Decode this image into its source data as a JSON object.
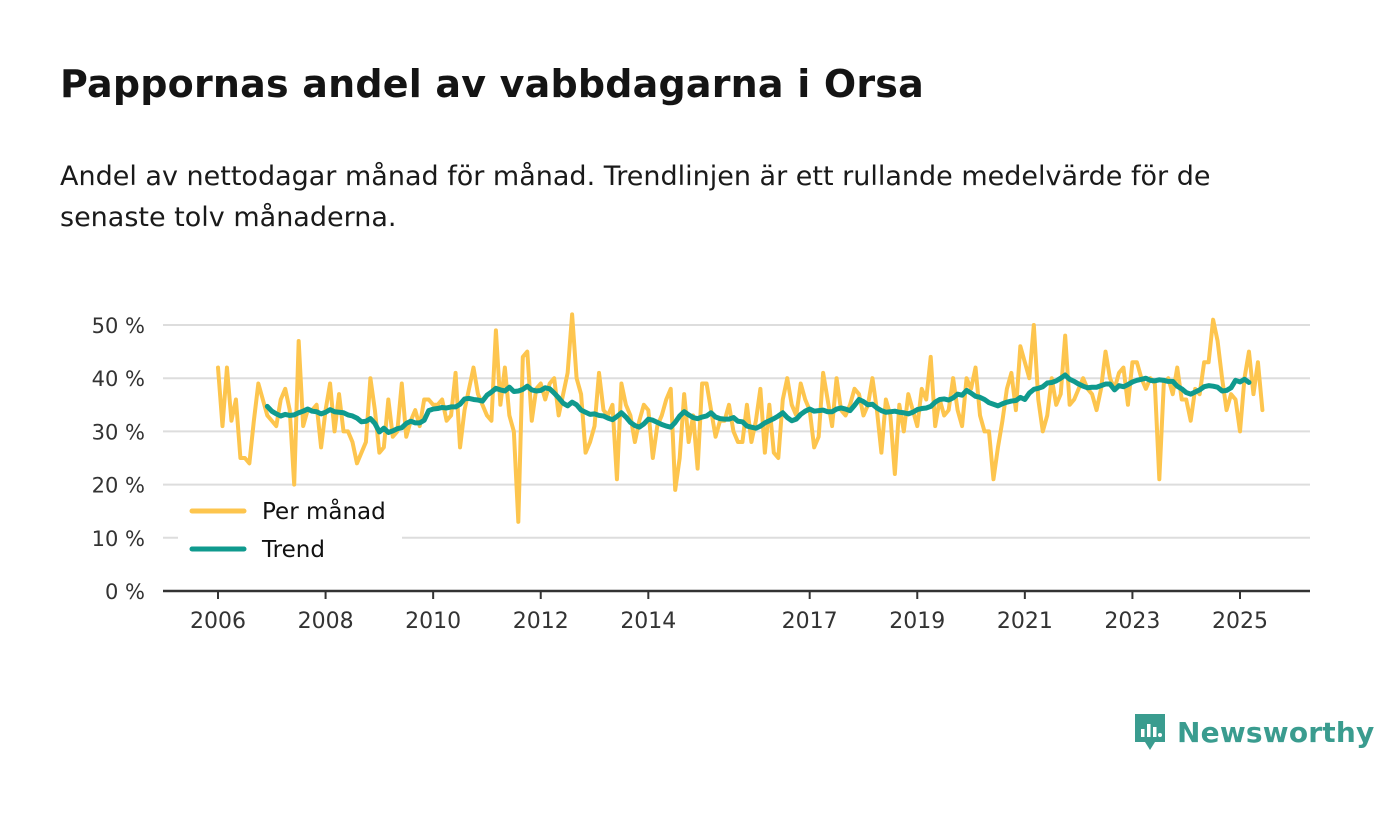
{
  "title": "Pappornas andel av vabbdagarna i Orsa",
  "subtitle": "Andel av nettodagar månad för månad. Trendlinjen är ett rullande medelvärde för de senaste tolv månaderna.",
  "brand": {
    "name": "Newsworthy",
    "icon": "newsworthy-logo-icon"
  },
  "colors": {
    "per_month": "#fdc54e",
    "trend": "#0f9a8e",
    "axis": "#333333",
    "grid": "#dddddd",
    "brand": "#3a9c8f"
  },
  "chart_data": {
    "type": "line",
    "title": "Pappornas andel av vabbdagarna i Orsa",
    "xlabel": "",
    "ylabel": "",
    "xlim": [
      2005.6,
      2026.3
    ],
    "ylim": [
      0,
      50
    ],
    "y_ticks": [
      0,
      10,
      20,
      30,
      40,
      50
    ],
    "y_tick_labels": [
      "0 %",
      "10 %",
      "20 %",
      "30 %",
      "40 %",
      "50 %"
    ],
    "x_ticks": [
      2006,
      2008,
      2010,
      2012,
      2014,
      2017,
      2019,
      2021,
      2023,
      2025
    ],
    "x_tick_labels": [
      "2006",
      "2008",
      "2010",
      "2012",
      "2014",
      "2017",
      "2019",
      "2021",
      "2023",
      "2025"
    ],
    "grid": true,
    "legend": {
      "placement": "bottom-left",
      "entries": [
        "Per månad",
        "Trend"
      ]
    },
    "series": [
      {
        "name": "Per månad",
        "start": 2006.0,
        "step_months": 1,
        "values": [
          42,
          31,
          42,
          32,
          36,
          25,
          25,
          24,
          32,
          39,
          36,
          33,
          32,
          31,
          36,
          38,
          34,
          20,
          47,
          31,
          34,
          34,
          35,
          27,
          34,
          39,
          30,
          37,
          30,
          30,
          28,
          24,
          26,
          28,
          40,
          34,
          26,
          27,
          36,
          29,
          30,
          39,
          29,
          32,
          34,
          31,
          36,
          36,
          35,
          35,
          36,
          32,
          33,
          41,
          27,
          34,
          38,
          42,
          37,
          35,
          33,
          32,
          49,
          35,
          42,
          33,
          30,
          13,
          44,
          45,
          32,
          38,
          39,
          36,
          39,
          40,
          33,
          37,
          41,
          52,
          40,
          37,
          26,
          28,
          31,
          41,
          34,
          33,
          35,
          21,
          39,
          35,
          33,
          28,
          32,
          35,
          34,
          25,
          31,
          33,
          36,
          38,
          19,
          25,
          37,
          28,
          33,
          23,
          39,
          39,
          34,
          29,
          32,
          32,
          35,
          30,
          28,
          28,
          35,
          28,
          32,
          38,
          26,
          35,
          26,
          25,
          36,
          40,
          35,
          33,
          39,
          36,
          34,
          27,
          29,
          41,
          36,
          31,
          40,
          34,
          33,
          35,
          38,
          37,
          33,
          35,
          40,
          34,
          26,
          36,
          33,
          22,
          35,
          30,
          37,
          34,
          31,
          38,
          36,
          44,
          31,
          36,
          33,
          34,
          40,
          34,
          31,
          40,
          38,
          42,
          33,
          30,
          30,
          21,
          27,
          32,
          38,
          41,
          34,
          46,
          43,
          40,
          50,
          36,
          30,
          33,
          40,
          35,
          37,
          48,
          35,
          36,
          38,
          40,
          38,
          37,
          34,
          38,
          45,
          40,
          38,
          41,
          42,
          35,
          43,
          43,
          40,
          38,
          40,
          39,
          21,
          39,
          40,
          37,
          42,
          36,
          36,
          32,
          38,
          37,
          43,
          43,
          51,
          47,
          40,
          34,
          37,
          36,
          30,
          40,
          45,
          37,
          43,
          34
        ]
      },
      {
        "name": "Trend",
        "start": 2006.917,
        "step_months": 1,
        "values": [
          34.7,
          33.8,
          33.3,
          32.9,
          33.2,
          33.0,
          33.1,
          33.5,
          33.8,
          34.2,
          33.8,
          33.7,
          33.3,
          33.6,
          34.1,
          33.7,
          33.6,
          33.5,
          33.1,
          32.9,
          32.5,
          31.8,
          31.9,
          32.4,
          31.5,
          29.9,
          30.6,
          29.8,
          30.1,
          30.5,
          30.7,
          31.5,
          31.9,
          31.6,
          31.6,
          32.1,
          33.9,
          34.2,
          34.3,
          34.5,
          34.4,
          34.6,
          34.6,
          35.1,
          36.1,
          36.2,
          36.0,
          35.9,
          35.7,
          36.8,
          37.4,
          38.1,
          37.8,
          37.6,
          38.3,
          37.5,
          37.6,
          37.9,
          38.5,
          37.8,
          37.6,
          37.7,
          38.2,
          38.0,
          37.2,
          36.3,
          35.3,
          34.8,
          35.5,
          35.0,
          34.0,
          33.6,
          33.2,
          33.3,
          33.0,
          32.9,
          32.5,
          32.2,
          32.8,
          33.5,
          32.7,
          31.7,
          31.1,
          30.8,
          31.4,
          32.3,
          32.1,
          31.7,
          31.3,
          31.0,
          30.8,
          31.7,
          32.9,
          33.7,
          33.1,
          32.6,
          32.4,
          32.7,
          32.9,
          33.5,
          32.7,
          32.4,
          32.3,
          32.3,
          32.6,
          31.9,
          31.8,
          31.0,
          30.8,
          30.6,
          31.0,
          31.6,
          32.0,
          32.4,
          32.9,
          33.5,
          32.6,
          32.0,
          32.3,
          33.2,
          33.8,
          34.2,
          33.8,
          33.9,
          34.0,
          33.7,
          33.7,
          34.2,
          34.4,
          34.2,
          33.9,
          34.9,
          36.0,
          35.6,
          35.0,
          35.1,
          34.4,
          33.9,
          33.6,
          33.7,
          33.8,
          33.6,
          33.5,
          33.3,
          33.6,
          34.1,
          34.3,
          34.4,
          34.7,
          35.5,
          36.0,
          36.1,
          35.9,
          36.3,
          37.0,
          36.8,
          37.7,
          37.2,
          36.6,
          36.4,
          36.0,
          35.4,
          35.1,
          34.8,
          35.2,
          35.5,
          35.7,
          35.8,
          36.4,
          36.0,
          37.2,
          37.9,
          38.1,
          38.4,
          39.1,
          39.2,
          39.5,
          40.0,
          40.6,
          39.8,
          39.4,
          38.9,
          38.5,
          38.2,
          38.3,
          38.3,
          38.6,
          38.9,
          38.9,
          37.8,
          38.6,
          38.4,
          38.8,
          39.3,
          39.6,
          39.8,
          40.0,
          39.6,
          39.5,
          39.7,
          39.6,
          39.4,
          39.4,
          38.5,
          38.0,
          37.3,
          37.0,
          37.4,
          37.8,
          38.4,
          38.6,
          38.5,
          38.3,
          37.6,
          37.7,
          38.2,
          39.6,
          39.3,
          39.8,
          39.2
        ]
      }
    ]
  }
}
